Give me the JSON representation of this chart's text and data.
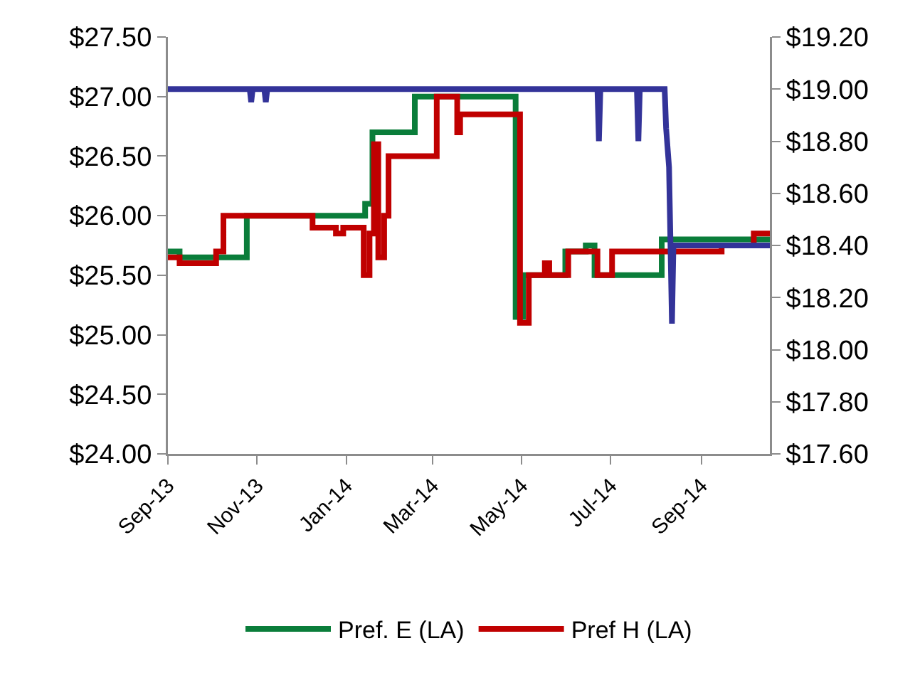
{
  "chart_data": {
    "type": "step",
    "xlim": [
      "2013-09-01",
      "2014-10-18"
    ],
    "xticks": [
      {
        "value": "2013-09-01",
        "label": "Sep-13"
      },
      {
        "value": "2013-11-01",
        "label": "Nov-13"
      },
      {
        "value": "2014-01-01",
        "label": "Jan-14"
      },
      {
        "value": "2014-03-01",
        "label": "Mar-14"
      },
      {
        "value": "2014-05-01",
        "label": "May-14"
      },
      {
        "value": "2014-07-01",
        "label": "Jul-14"
      },
      {
        "value": "2014-09-01",
        "label": "Sep-14"
      }
    ],
    "ylim": [
      24,
      27.5
    ],
    "yticks": [
      {
        "value": 24,
        "label": "$24.00"
      },
      {
        "value": 24.5,
        "label": "$24.50"
      },
      {
        "value": 25,
        "label": "$25.00"
      },
      {
        "value": 25.5,
        "label": "$25.50"
      },
      {
        "value": 26,
        "label": "$26.00"
      },
      {
        "value": 26.5,
        "label": "$26.50"
      },
      {
        "value": 27,
        "label": "$27.00"
      },
      {
        "value": 27.5,
        "label": "$27.50"
      }
    ],
    "y2lim": [
      17.6,
      19.2
    ],
    "y2ticks": [
      {
        "value": 17.6,
        "label": "$17.60"
      },
      {
        "value": 17.8,
        "label": "$17.80"
      },
      {
        "value": 18,
        "label": "$18.00"
      },
      {
        "value": 18.2,
        "label": "$18.20"
      },
      {
        "value": 18.4,
        "label": "$18.40"
      },
      {
        "value": 18.6,
        "label": "$18.60"
      },
      {
        "value": 18.8,
        "label": "$18.80"
      },
      {
        "value": 19,
        "label": "$19.00"
      },
      {
        "value": 19.2,
        "label": "$19.20"
      }
    ],
    "grid": false,
    "legend": "bottom",
    "marker": "none",
    "line_style": "solid",
    "series": [
      {
        "name": "Pref. E (LA)",
        "color": "#0a7d3a",
        "x": [
          "2013-09-01",
          "2013-09-09",
          "2013-10-25",
          "2014-01-14",
          "2014-01-19",
          "2014-02-17",
          "2014-04-27",
          "2014-05-02",
          "2014-05-31",
          "2014-06-14",
          "2014-06-20",
          "2014-08-05",
          "2014-10-18"
        ],
        "values": [
          25.7,
          25.65,
          26.0,
          26.1,
          26.7,
          27.0,
          25.15,
          25.5,
          25.7,
          25.75,
          25.5,
          25.8,
          25.8
        ]
      },
      {
        "name": "Pref H (LA)",
        "color": "#c00000",
        "x": [
          "2013-09-01",
          "2013-09-09",
          "2013-10-04",
          "2013-10-09",
          "2013-12-09",
          "2013-12-25",
          "2013-12-30",
          "2014-01-13",
          "2014-01-17",
          "2014-01-20",
          "2014-01-23",
          "2014-01-27",
          "2014-01-30",
          "2014-03-04",
          "2014-03-18",
          "2014-03-20",
          "2014-04-30",
          "2014-05-06",
          "2014-05-17",
          "2014-05-20",
          "2014-06-02",
          "2014-06-22",
          "2014-07-02",
          "2014-09-15",
          "2014-10-07",
          "2014-10-18"
        ],
        "values": [
          25.65,
          25.6,
          25.7,
          26.0,
          25.9,
          25.85,
          25.9,
          25.5,
          25.85,
          26.6,
          25.65,
          26.0,
          26.5,
          27.0,
          26.7,
          26.85,
          25.1,
          25.5,
          25.6,
          25.5,
          25.7,
          25.5,
          25.7,
          25.75,
          25.85,
          25.85
        ]
      },
      {
        "type": "line",
        "axis": "y2",
        "color": "#333399",
        "x": [
          "2013-09-01",
          "2013-10-27",
          "2013-10-28",
          "2013-10-29",
          "2013-11-06",
          "2013-11-07",
          "2013-11-08",
          "2014-06-22",
          "2014-06-23",
          "2014-06-24",
          "2014-07-19",
          "2014-07-20",
          "2014-07-21",
          "2014-08-07",
          "2014-08-08",
          "2014-08-10",
          "2014-08-12",
          "2014-08-13",
          "2014-10-18"
        ],
        "values": [
          19.0,
          19.0,
          18.95,
          19.0,
          19.0,
          18.95,
          19.0,
          19.0,
          18.8,
          19.0,
          19.0,
          18.8,
          19.0,
          19.0,
          18.85,
          18.7,
          18.1,
          18.4,
          18.4
        ]
      }
    ]
  }
}
